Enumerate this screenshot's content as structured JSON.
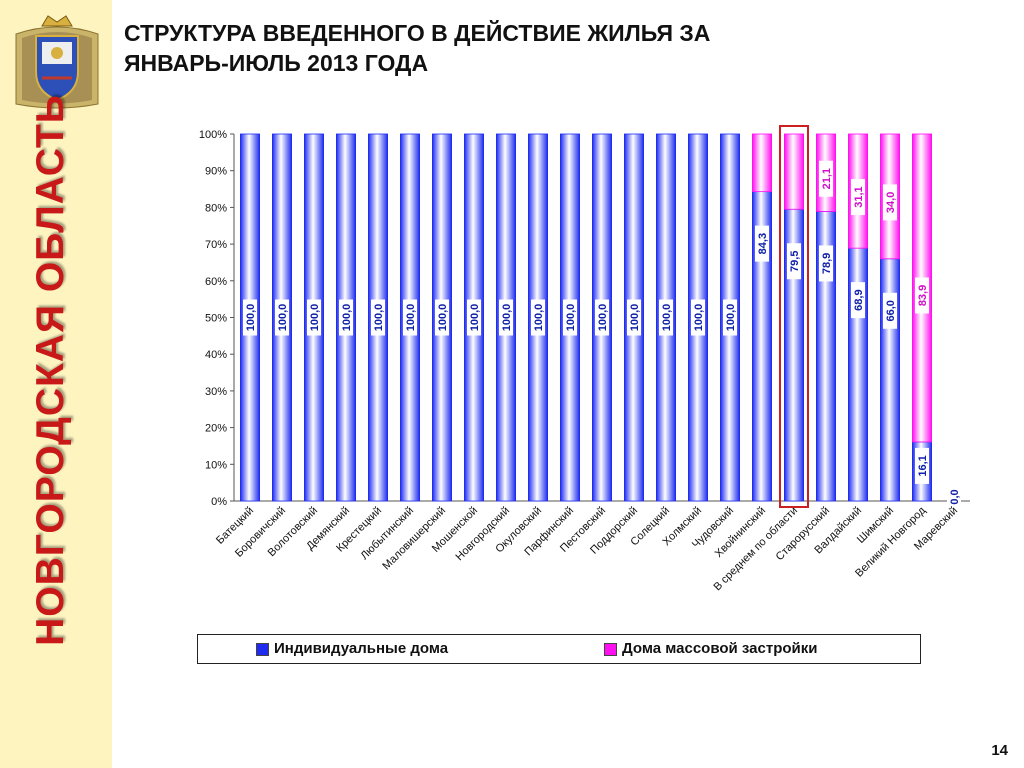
{
  "slide": {
    "title_line1": "СТРУКТУРА ВВЕДЕННОГО В ДЕЙСТВИЕ ЖИЛЬЯ ЗА",
    "title_line2": "ЯНВАРЬ-ИЮЛЬ 2013 ГОДА",
    "region_name": "НОВГОРОДСКАЯ ОБЛАСТЬ",
    "page_number": "14",
    "emblem_icon": "novgorod-coat-of-arms"
  },
  "colors": {
    "individual": "#1f2cf0",
    "mass": "#ff10f0",
    "highlight": "#cc1f1f"
  },
  "chart_data": {
    "type": "bar",
    "stacked": true,
    "percent": true,
    "categories": [
      "Батецкий",
      "Боровичский",
      "Волотовский",
      "Демянский",
      "Крестецкий",
      "Любытинский",
      "Маловишерский",
      "Мошенской",
      "Новгородский",
      "Окуловский",
      "Парфинский",
      "Пестовский",
      "Поддорский",
      "Солецкий",
      "Холмский",
      "Чудовский",
      "Хвойнинский",
      "В среднем по области",
      "Старорусский",
      "Валдайский",
      "Шимский",
      "Великий Новгород",
      "Маревский"
    ],
    "series": [
      {
        "name": "Индивидуальные дома",
        "values": [
          100.0,
          100.0,
          100.0,
          100.0,
          100.0,
          100.0,
          100.0,
          100.0,
          100.0,
          100.0,
          100.0,
          100.0,
          100.0,
          100.0,
          100.0,
          100.0,
          84.3,
          79.5,
          78.9,
          68.9,
          66.0,
          16.1,
          0.0
        ],
        "labels": [
          "100,0",
          "100,0",
          "100,0",
          "100,0",
          "100,0",
          "100,0",
          "100,0",
          "100,0",
          "100,0",
          "100,0",
          "100,0",
          "100,0",
          "100,0",
          "100,0",
          "100,0",
          "100,0",
          "84,3",
          "79,5",
          "78,9",
          "68,9",
          "66,0",
          "16,1",
          "0,0"
        ]
      },
      {
        "name": "Дома массовой застройки",
        "values": [
          0,
          0,
          0,
          0,
          0,
          0,
          0,
          0,
          0,
          0,
          0,
          0,
          0,
          0,
          0,
          0,
          15.7,
          20.5,
          21.1,
          31.1,
          34.0,
          83.9,
          0
        ],
        "labels": [
          "",
          "",
          "",
          "",
          "",
          "",
          "",
          "",
          "",
          "",
          "",
          "",
          "",
          "",
          "",
          "",
          "",
          "",
          "21,1",
          "31,1",
          "34,0",
          "83,9",
          ""
        ]
      }
    ],
    "yticks": [
      "0%",
      "10%",
      "20%",
      "30%",
      "40%",
      "50%",
      "60%",
      "70%",
      "80%",
      "90%",
      "100%"
    ],
    "ylim": [
      0,
      100
    ],
    "highlighted_category": "В среднем по области",
    "legend_position": "bottom"
  }
}
